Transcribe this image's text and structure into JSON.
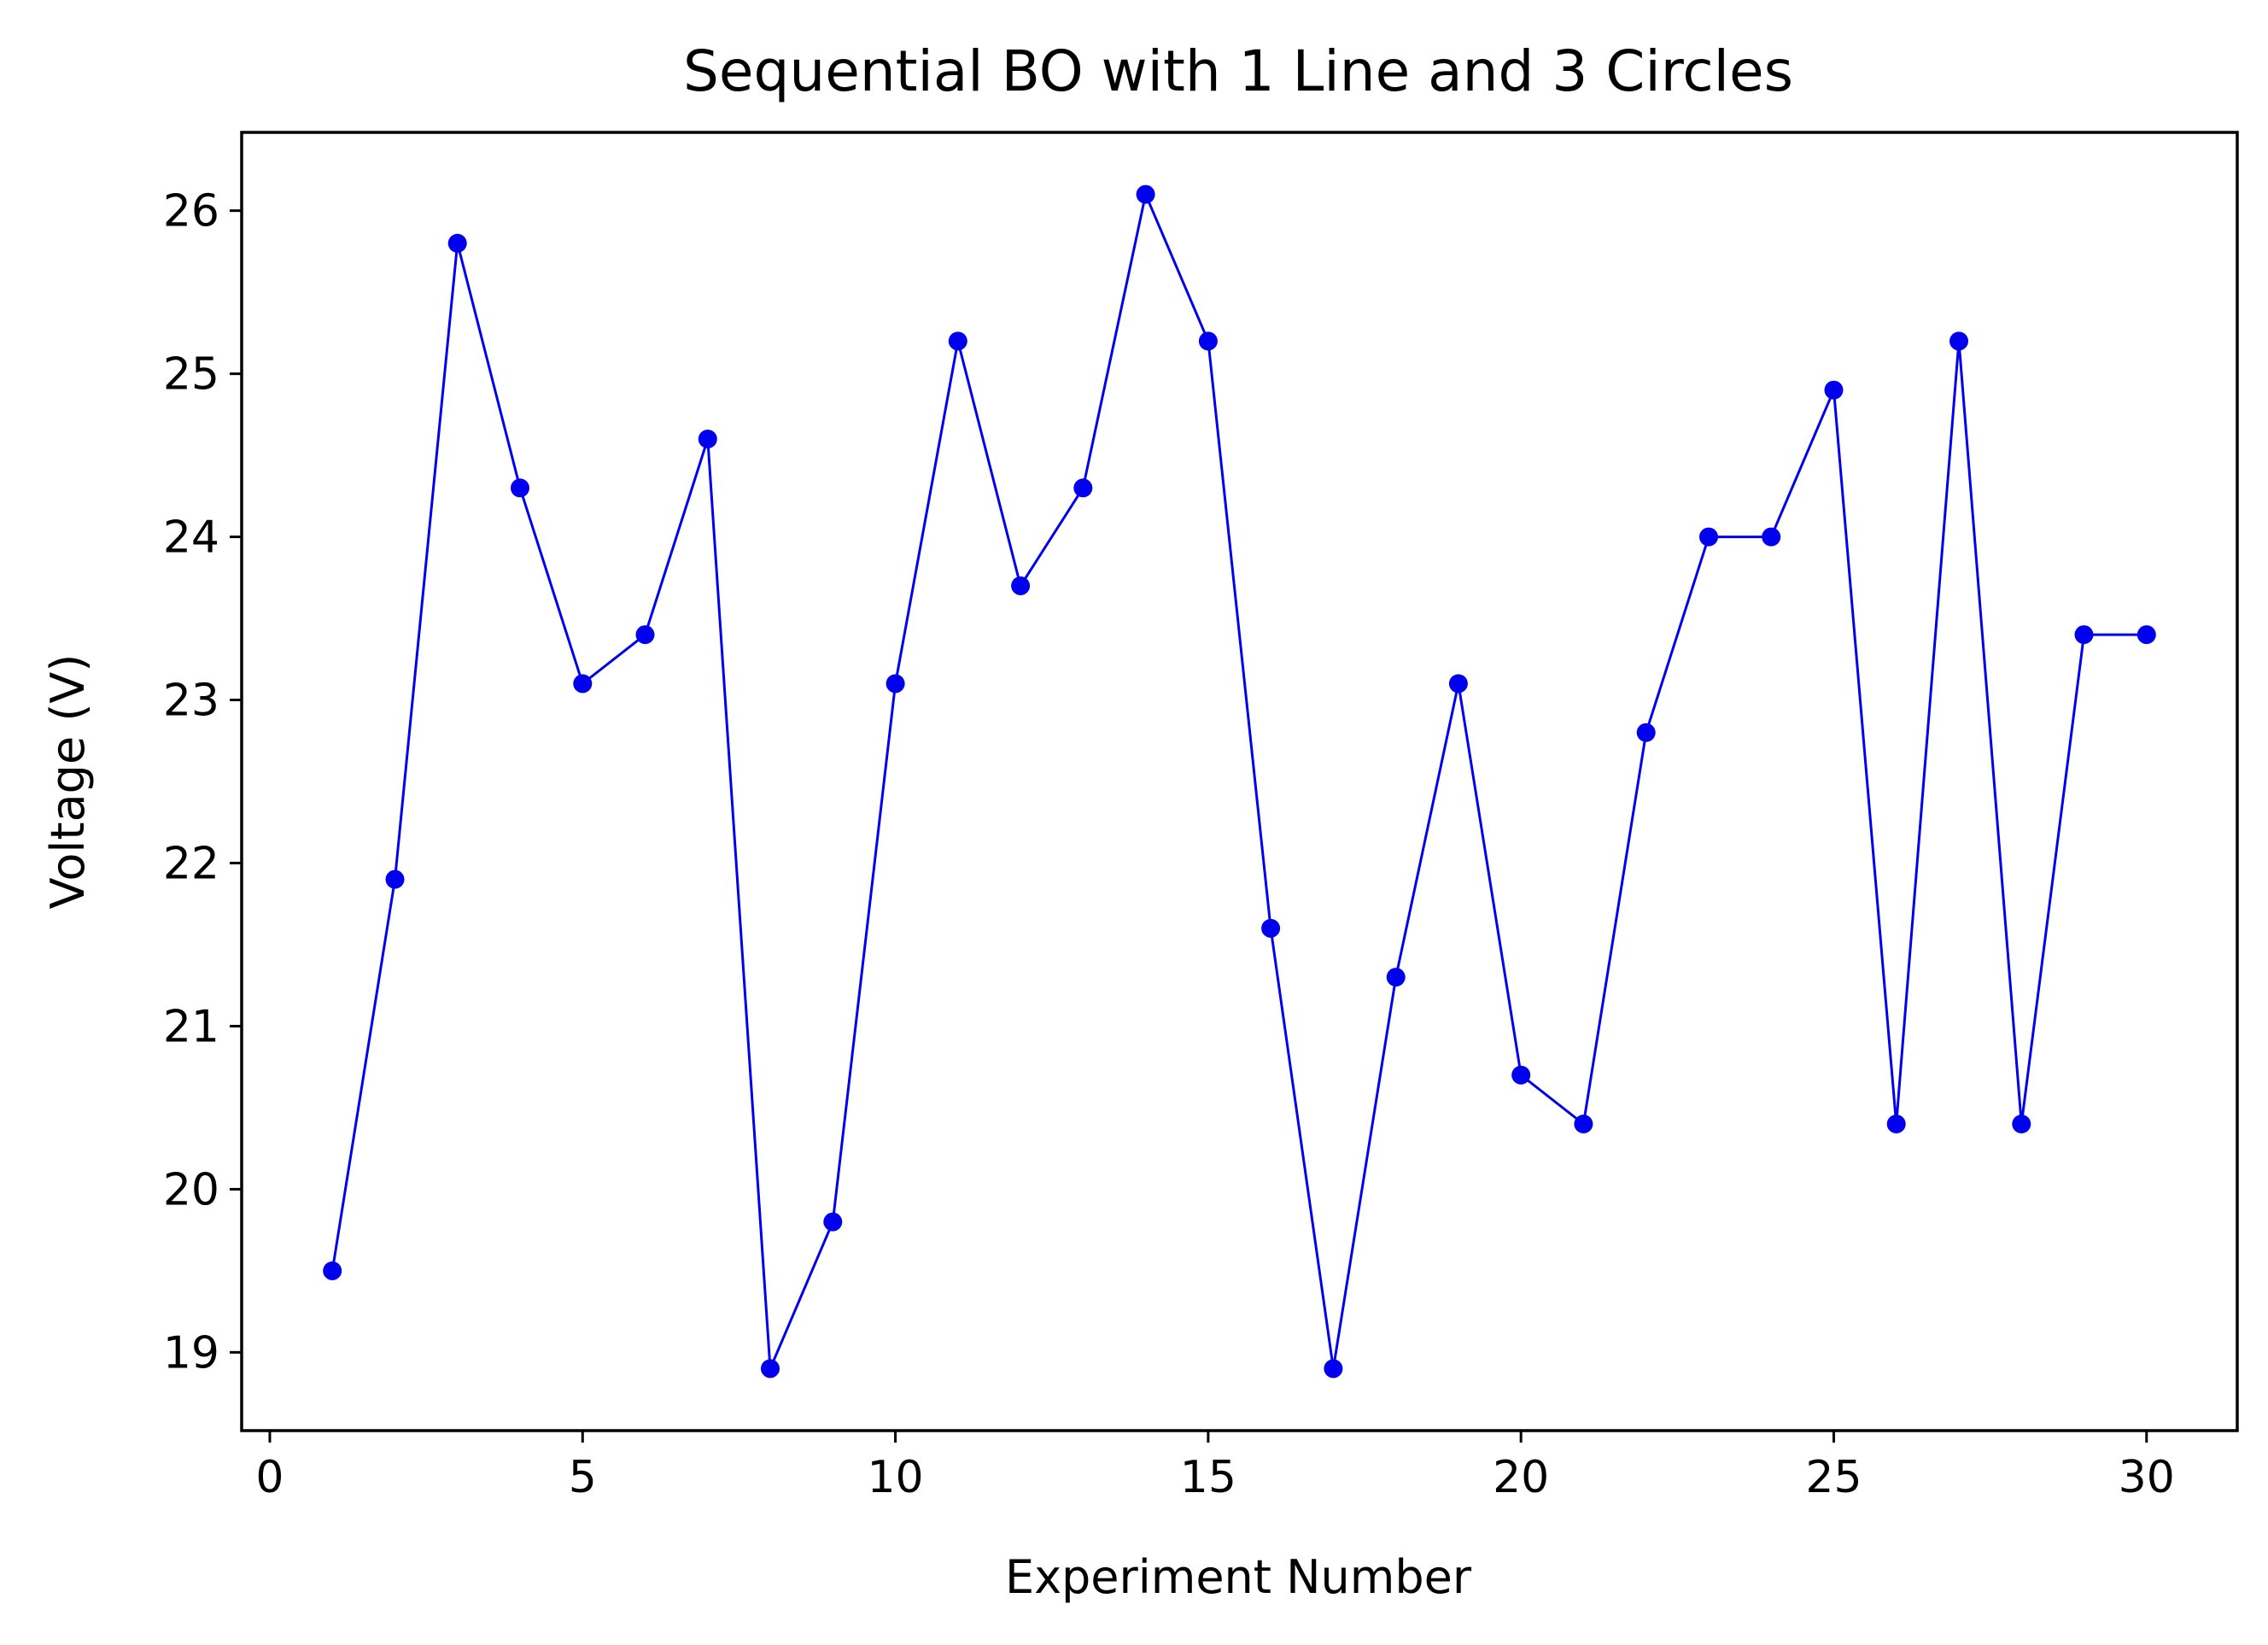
{
  "chart_data": {
    "type": "line",
    "title": "Sequential BO with 1 Line and 3 Circles",
    "xlabel": "Experiment Number",
    "ylabel": "Voltage (V)",
    "xlim": [
      -0.45,
      31.45
    ],
    "ylim": [
      18.52,
      26.48
    ],
    "xticks": [
      0,
      5,
      10,
      15,
      20,
      25,
      30
    ],
    "yticks": [
      19,
      20,
      21,
      22,
      23,
      24,
      25,
      26
    ],
    "grid": false,
    "legend": "none",
    "series": [
      {
        "color": "#0000ee",
        "marker": "circle",
        "x": [
          1,
          2,
          3,
          4,
          5,
          6,
          7,
          8,
          9,
          10,
          11,
          12,
          13,
          14,
          15,
          16,
          17,
          18,
          19,
          20,
          21,
          22,
          23,
          24,
          25,
          26,
          27,
          28,
          29,
          30
        ],
        "y": [
          19.5,
          21.9,
          25.8,
          24.3,
          23.1,
          23.4,
          24.6,
          18.9,
          19.8,
          23.1,
          25.2,
          23.7,
          24.3,
          26.1,
          25.2,
          21.6,
          18.9,
          21.3,
          23.1,
          20.7,
          20.4,
          22.8,
          24.0,
          24.0,
          24.9,
          20.4,
          25.2,
          20.4,
          23.4,
          23.4
        ]
      }
    ]
  }
}
